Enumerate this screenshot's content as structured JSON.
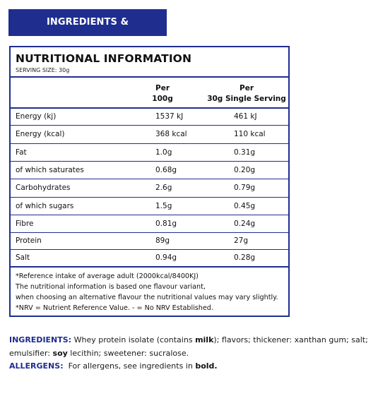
{
  "tab_title": "INGREDIENTS & NUTRITIONALS",
  "panel": {
    "title": "NUTRITIONAL INFORMATION",
    "serving_size": "SERVING SIZE: 30g"
  },
  "table": {
    "headers": {
      "col1_line1": "Per",
      "col1_line2": "100g",
      "col2_line1": "Per",
      "col2_line2": "30g Single Serving"
    },
    "rows": [
      {
        "name": "Energy (kj)",
        "per100": "1537 kJ",
        "serving": "461 kJ"
      },
      {
        "name": "Energy (kcal)",
        "per100": "368 kcal",
        "serving": "110 kcal"
      },
      {
        "name": "Fat",
        "per100": "1.0g",
        "serving": "0.31g"
      },
      {
        "name": "of which saturates",
        "per100": "0.68g",
        "serving": "0.20g"
      },
      {
        "name": "Carbohydrates",
        "per100": "2.6g",
        "serving": "0.79g"
      },
      {
        "name": "of which sugars",
        "per100": "1.5g",
        "serving": "0.45g"
      },
      {
        "name": "Fibre",
        "per100": "0.81g",
        "serving": "0.24g"
      },
      {
        "name": "Protein",
        "per100": "89g",
        "serving": "27g"
      },
      {
        "name": "Salt",
        "per100": "0.94g",
        "serving": "0.28g"
      }
    ]
  },
  "notes": [
    "*Reference intake of average adult (2000kcal/8400KJ)",
    "The nutritional information is based one flavour variant,",
    "when choosing an alternative flavour the nutritional values may vary slightly.",
    "*NRV = Nutrient Reference Value. - = No NRV Established."
  ],
  "ingredients": {
    "label": "INGREDIENTS:",
    "text_1": " Whey protein isolate (contains ",
    "bold_1": "milk",
    "text_2": "); flavors; thickener: xanthan gum; salt; emulsifier: ",
    "bold_2": "soy",
    "text_3": " lecithin; sweetener: sucralose."
  },
  "allergens": {
    "label": "ALLERGENS:",
    "text_1": "  For allergens, see ingredients in ",
    "bold_1": "bold."
  },
  "colors": {
    "brand_blue": "#1f2d8f"
  }
}
